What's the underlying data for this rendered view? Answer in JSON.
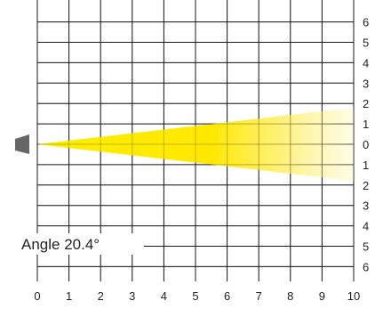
{
  "angle_label": "Angle 20.4°",
  "beam": {
    "angle_deg": 20.4,
    "color": "#ffee00"
  },
  "source_icon": "light-source-icon",
  "axes": {
    "x_labels": [
      "0",
      "1",
      "2",
      "3",
      "4",
      "5",
      "6",
      "7",
      "8",
      "9",
      "10"
    ],
    "y_labels_top_to_bottom": [
      "6",
      "5",
      "4",
      "3",
      "2",
      "1",
      "0",
      "1",
      "2",
      "3",
      "4",
      "5",
      "6"
    ]
  }
}
